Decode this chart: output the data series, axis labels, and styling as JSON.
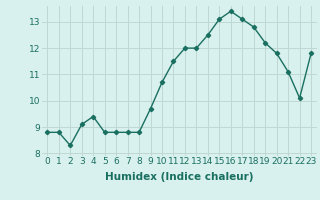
{
  "x": [
    0,
    1,
    2,
    3,
    4,
    5,
    6,
    7,
    8,
    9,
    10,
    11,
    12,
    13,
    14,
    15,
    16,
    17,
    18,
    19,
    20,
    21,
    22,
    23
  ],
  "y": [
    8.8,
    8.8,
    8.3,
    9.1,
    9.4,
    8.8,
    8.8,
    8.8,
    8.8,
    9.7,
    10.7,
    11.5,
    12.0,
    12.0,
    12.5,
    13.1,
    13.4,
    13.1,
    12.8,
    12.2,
    11.8,
    11.1,
    10.1,
    11.8
  ],
  "xlabel": "Humidex (Indice chaleur)",
  "xlim": [
    -0.5,
    23.5
  ],
  "ylim": [
    7.9,
    13.6
  ],
  "yticks": [
    8,
    9,
    10,
    11,
    12,
    13
  ],
  "xticks": [
    0,
    1,
    2,
    3,
    4,
    5,
    6,
    7,
    8,
    9,
    10,
    11,
    12,
    13,
    14,
    15,
    16,
    17,
    18,
    19,
    20,
    21,
    22,
    23
  ],
  "line_color": "#1a7060",
  "marker": "D",
  "marker_size": 2.2,
  "bg_color": "#d8f0ee",
  "grid_color": "#c0d8d4",
  "tick_label_fontsize": 6.5,
  "xlabel_fontsize": 7.5,
  "line_width": 1.0
}
